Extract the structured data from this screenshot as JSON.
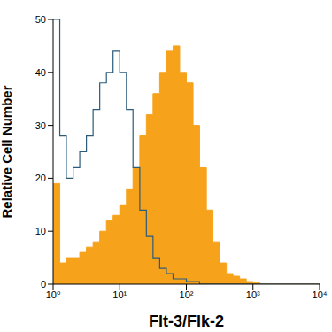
{
  "chart_data": {
    "type": "area",
    "x_label": "Flt-3/Flk-2",
    "y_label": "Relative Cell Number",
    "log": "x",
    "grid": false,
    "xlim": [
      1,
      10000
    ],
    "xticks": [
      {
        "value": 1,
        "label": "10⁰"
      },
      {
        "value": 10,
        "label": "10¹"
      },
      {
        "value": 100,
        "label": "10²"
      },
      {
        "value": 1000,
        "label": "10³"
      },
      {
        "value": 10000,
        "label": "10⁴"
      }
    ],
    "ylim": [
      0,
      50
    ],
    "yticks": [
      0,
      10,
      20,
      30,
      40,
      50
    ],
    "x": [
      1,
      1.26,
      1.58,
      2,
      2.51,
      3.16,
      3.98,
      5.01,
      6.31,
      7.94,
      10,
      12.6,
      15.8,
      20,
      25.1,
      31.6,
      39.8,
      50.1,
      63.1,
      79.4,
      100,
      126,
      158,
      200,
      251,
      316,
      398,
      501,
      631,
      794,
      1000,
      1260,
      1580,
      2000,
      2510,
      3160,
      3980,
      5010,
      6310,
      7940,
      10000
    ],
    "series": [
      {
        "type": "area",
        "color": "#f7a21b",
        "line_style": "step",
        "values": [
          19,
          4,
          5,
          5,
          6,
          7,
          8,
          10,
          12,
          13,
          15,
          18,
          22,
          28,
          32,
          36,
          40,
          44,
          45,
          40,
          38,
          30,
          22,
          14,
          8,
          4,
          2,
          1.5,
          1,
          0.5,
          0.3,
          0,
          0,
          0,
          0,
          0,
          0,
          0,
          0,
          0,
          0
        ]
      },
      {
        "type": "line",
        "color": "#2b5c7a",
        "line_style": "step",
        "values": [
          50,
          28,
          20,
          22,
          25,
          28,
          33,
          38,
          40,
          44,
          40,
          33,
          22,
          14,
          9,
          5,
          3,
          2,
          1,
          1,
          0.5,
          0.5,
          0,
          0,
          0,
          0,
          0,
          0,
          0,
          0,
          0,
          0,
          0,
          0,
          0,
          0,
          0,
          0,
          0,
          0,
          0
        ]
      }
    ]
  }
}
